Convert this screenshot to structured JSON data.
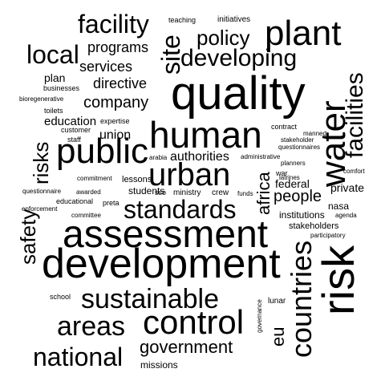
{
  "words": {
    "quality": "quality",
    "development": "development",
    "assessment": "assessment",
    "risk": "risk",
    "human": "human",
    "public": "public",
    "control": "control",
    "plant": "plant",
    "water": "water",
    "urban": "urban",
    "countries": "countries",
    "sustainable": "sustainable",
    "areas": "areas",
    "national": "national",
    "standards": "standards",
    "facility": "facility",
    "facilities": "facilities",
    "local": "local",
    "developing": "developing",
    "site": "site",
    "policy": "policy",
    "safety": "safety",
    "risks": "risks",
    "government": "government",
    "eu": "eu",
    "africa": "africa",
    "people": "people",
    "company": "company",
    "services": "services",
    "directive": "directive",
    "programs": "programs",
    "union": "union",
    "authorities": "authorities",
    "education": "education",
    "plan": "plan",
    "federal": "federal",
    "private": "private",
    "students": "students",
    "nasa": "nasa",
    "institutions": "institutions",
    "stakeholders": "stakeholders",
    "missions": "missions",
    "lessons": "lessons",
    "ministry": "ministry",
    "crew": "crew",
    "sso": "sso",
    "preta": "preta",
    "contract": "contract",
    "manned": "manned",
    "stakeholder": "stakeholder",
    "questionnaires": "questionnaires",
    "administrative": "administrative",
    "planners": "planners",
    "war": "war",
    "latrines": "latrines",
    "comfort": "comfort",
    "funds": "funds",
    "agenda": "agenda",
    "participatory": "participatory",
    "lunar": "lunar",
    "governance": "governance",
    "school": "school",
    "teaching": "teaching",
    "initiatives": "initiatives",
    "businesses": "businesses",
    "bioregenerative": "bioregenerative",
    "toilets": "toilets",
    "customer": "customer",
    "staff": "staff",
    "expertise": "expertise",
    "arabia": "arabia",
    "commitment": "commitment",
    "questionnaire": "questionnaire",
    "awarded": "awarded",
    "educational": "educational",
    "enforcement": "enforcement",
    "committee": "committee"
  },
  "colors": {
    "background": "#ffffff",
    "text": "#000000"
  }
}
